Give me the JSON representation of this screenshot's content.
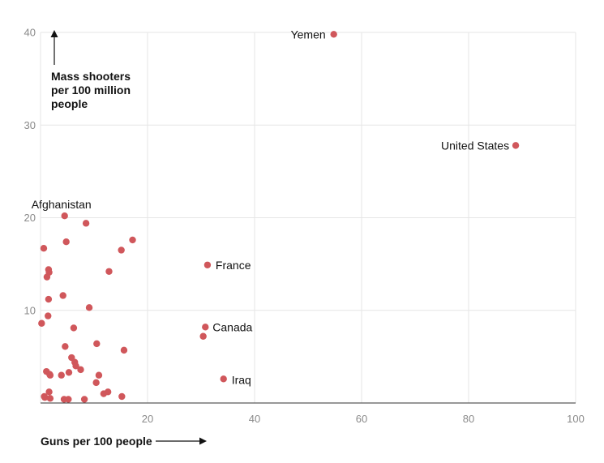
{
  "chart_data": {
    "type": "scatter",
    "xlabel": "Guns per 100 people",
    "ylabel_lines": [
      "Mass shooters",
      "per 100 million",
      "people"
    ],
    "xlim": [
      0,
      100
    ],
    "ylim": [
      0,
      40
    ],
    "x_ticks": [
      20,
      40,
      60,
      80,
      100
    ],
    "y_ticks": [
      10,
      20,
      30,
      40
    ],
    "grid": true,
    "colors": {
      "point": "#d0575b",
      "grid": "#e6e6e6",
      "text": "#121212",
      "tick": "#8a8a8a",
      "axis": "#121212"
    },
    "points": [
      {
        "x": 54.8,
        "y": 39.8,
        "label": "Yemen"
      },
      {
        "x": 88.8,
        "y": 27.8,
        "label": "United States"
      },
      {
        "x": 4.5,
        "y": 20.2,
        "label": "Afghanistan"
      },
      {
        "x": 31.2,
        "y": 14.9,
        "label": "France"
      },
      {
        "x": 30.8,
        "y": 8.2,
        "label": "Canada"
      },
      {
        "x": 34.2,
        "y": 2.6,
        "label": "Iraq"
      },
      {
        "x": 30.4,
        "y": 7.2,
        "label": ""
      },
      {
        "x": 8.5,
        "y": 19.4,
        "label": ""
      },
      {
        "x": 0.6,
        "y": 16.7,
        "label": ""
      },
      {
        "x": 4.8,
        "y": 17.4,
        "label": ""
      },
      {
        "x": 17.2,
        "y": 17.6,
        "label": ""
      },
      {
        "x": 15.1,
        "y": 16.5,
        "label": ""
      },
      {
        "x": 1.5,
        "y": 14.4,
        "label": ""
      },
      {
        "x": 1.6,
        "y": 14.1,
        "label": ""
      },
      {
        "x": 1.2,
        "y": 13.6,
        "label": ""
      },
      {
        "x": 12.8,
        "y": 14.2,
        "label": ""
      },
      {
        "x": 4.2,
        "y": 11.6,
        "label": ""
      },
      {
        "x": 1.5,
        "y": 11.2,
        "label": ""
      },
      {
        "x": 9.1,
        "y": 10.3,
        "label": ""
      },
      {
        "x": 1.4,
        "y": 9.4,
        "label": ""
      },
      {
        "x": 0.2,
        "y": 8.6,
        "label": ""
      },
      {
        "x": 6.2,
        "y": 8.1,
        "label": ""
      },
      {
        "x": 10.5,
        "y": 6.4,
        "label": ""
      },
      {
        "x": 4.6,
        "y": 6.1,
        "label": ""
      },
      {
        "x": 15.6,
        "y": 5.7,
        "label": ""
      },
      {
        "x": 5.8,
        "y": 4.9,
        "label": ""
      },
      {
        "x": 6.4,
        "y": 4.4,
        "label": ""
      },
      {
        "x": 6.6,
        "y": 4.0,
        "label": ""
      },
      {
        "x": 7.5,
        "y": 3.6,
        "label": ""
      },
      {
        "x": 1.1,
        "y": 3.4,
        "label": ""
      },
      {
        "x": 1.7,
        "y": 3.1,
        "label": ""
      },
      {
        "x": 1.8,
        "y": 3.0,
        "label": ""
      },
      {
        "x": 3.9,
        "y": 3.0,
        "label": ""
      },
      {
        "x": 5.3,
        "y": 3.3,
        "label": ""
      },
      {
        "x": 10.9,
        "y": 3.0,
        "label": ""
      },
      {
        "x": 10.4,
        "y": 2.2,
        "label": ""
      },
      {
        "x": 1.6,
        "y": 1.2,
        "label": ""
      },
      {
        "x": 12.6,
        "y": 1.2,
        "label": ""
      },
      {
        "x": 11.8,
        "y": 1.0,
        "label": ""
      },
      {
        "x": 0.7,
        "y": 0.7,
        "label": ""
      },
      {
        "x": 0.8,
        "y": 0.6,
        "label": ""
      },
      {
        "x": 1.8,
        "y": 0.5,
        "label": ""
      },
      {
        "x": 4.4,
        "y": 0.4,
        "label": ""
      },
      {
        "x": 5.2,
        "y": 0.4,
        "label": ""
      },
      {
        "x": 8.2,
        "y": 0.4,
        "label": ""
      },
      {
        "x": 15.2,
        "y": 0.7,
        "label": ""
      }
    ]
  }
}
